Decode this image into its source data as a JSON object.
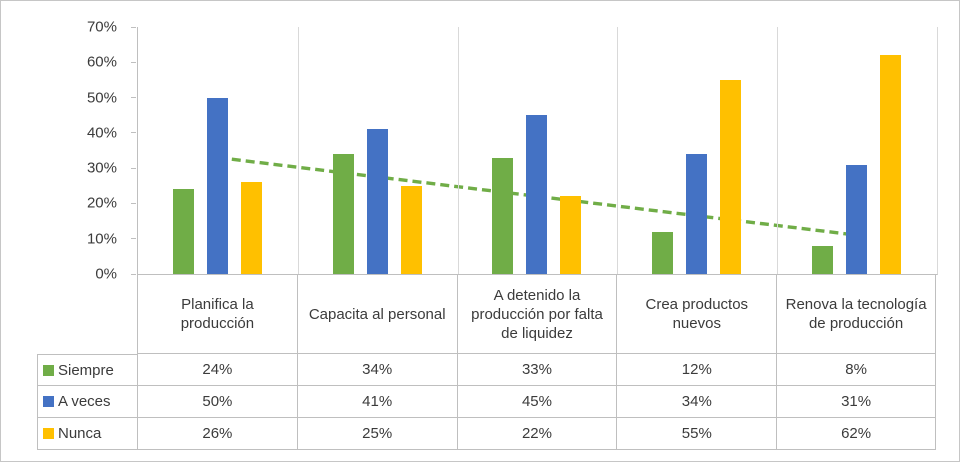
{
  "chart_data": {
    "type": "bar",
    "title": "",
    "xlabel": "",
    "ylabel": "",
    "categories": [
      "Planifica la producción",
      "Capacita al personal",
      "A detenido la producción por falta de liquidez",
      "Crea productos nuevos",
      "Renova la tecnología de producción"
    ],
    "series": [
      {
        "name": "Siempre",
        "color": "#70AD47",
        "values": [
          24,
          34,
          33,
          12,
          8
        ]
      },
      {
        "name": "A veces",
        "color": "#4472C4",
        "values": [
          50,
          41,
          45,
          34,
          31
        ]
      },
      {
        "name": "Nunca",
        "color": "#FFC000",
        "values": [
          26,
          25,
          22,
          55,
          62
        ]
      }
    ],
    "value_suffix": "%",
    "y_axis": {
      "min": 0,
      "max": 70,
      "step": 10,
      "tick_labels": [
        "0%",
        "10%",
        "20%",
        "30%",
        "40%",
        "50%",
        "60%",
        "70%"
      ]
    },
    "gridlines": "vertical-category-separators-only",
    "legend_position": "table-left-column",
    "trendline": {
      "series": "Siempre",
      "style": "dashed",
      "color": "#70AD47",
      "y_start_pct": 33,
      "y_end_pct": 11
    }
  }
}
